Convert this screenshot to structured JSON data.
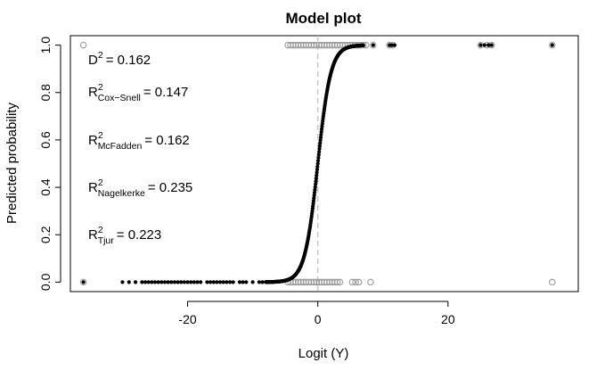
{
  "chart_data": {
    "type": "scatter",
    "title": "Model plot",
    "xlabel": "Logit (Y)",
    "ylabel": "Predicted probability",
    "xlim": [
      -38,
      40
    ],
    "ylim": [
      -0.04,
      1.04
    ],
    "x_ticks": [
      -20,
      0,
      20
    ],
    "x_tick_labels": [
      "-20",
      "0",
      "20"
    ],
    "y_ticks": [
      0,
      0.2,
      0.4,
      0.6,
      0.8,
      1.0
    ],
    "y_tick_labels": [
      "0.0",
      "0.2",
      "0.4",
      "0.6",
      "0.8",
      "1.0"
    ],
    "reference_line_x": 0,
    "series": [
      {
        "role": "fitted",
        "color": "#000000",
        "marker": "filled-circle",
        "curve": "logistic",
        "x_range": [
          -36,
          36
        ],
        "x_dense_range": [
          -8,
          7
        ]
      },
      {
        "role": "observed",
        "color": "#9a9a9a",
        "marker": "open-circle",
        "points": [
          {
            "x": -36,
            "y": 0
          },
          {
            "x": -36,
            "y": 1
          },
          {
            "x": -4.6,
            "y": 0
          },
          {
            "x": -4.2,
            "y": 0
          },
          {
            "x": -3.8,
            "y": 0
          },
          {
            "x": -3.4,
            "y": 0
          },
          {
            "x": -3.0,
            "y": 0
          },
          {
            "x": -2.6,
            "y": 0
          },
          {
            "x": -2.2,
            "y": 0
          },
          {
            "x": -1.8,
            "y": 0
          },
          {
            "x": -1.4,
            "y": 0
          },
          {
            "x": -1.0,
            "y": 0
          },
          {
            "x": -0.6,
            "y": 0
          },
          {
            "x": -0.2,
            "y": 0
          },
          {
            "x": 0.2,
            "y": 0
          },
          {
            "x": 0.6,
            "y": 0
          },
          {
            "x": 1.0,
            "y": 0
          },
          {
            "x": 1.4,
            "y": 0
          },
          {
            "x": 1.8,
            "y": 0
          },
          {
            "x": 2.2,
            "y": 0
          },
          {
            "x": 2.6,
            "y": 0
          },
          {
            "x": 3.0,
            "y": 0
          },
          {
            "x": 3.4,
            "y": 0
          },
          {
            "x": 5.3,
            "y": 0
          },
          {
            "x": 5.8,
            "y": 0
          },
          {
            "x": 6.3,
            "y": 0
          },
          {
            "x": 8.1,
            "y": 0
          },
          {
            "x": 36,
            "y": 0
          },
          {
            "x": -4.6,
            "y": 1
          },
          {
            "x": -4.2,
            "y": 1
          },
          {
            "x": -3.8,
            "y": 1
          },
          {
            "x": -3.4,
            "y": 1
          },
          {
            "x": -3.0,
            "y": 1
          },
          {
            "x": -2.6,
            "y": 1
          },
          {
            "x": -2.2,
            "y": 1
          },
          {
            "x": -1.8,
            "y": 1
          },
          {
            "x": -1.4,
            "y": 1
          },
          {
            "x": -1.0,
            "y": 1
          },
          {
            "x": -0.6,
            "y": 1
          },
          {
            "x": -0.2,
            "y": 1
          },
          {
            "x": 0.2,
            "y": 1
          },
          {
            "x": 0.6,
            "y": 1
          },
          {
            "x": 1.0,
            "y": 1
          },
          {
            "x": 1.4,
            "y": 1
          },
          {
            "x": 1.8,
            "y": 1
          },
          {
            "x": 2.2,
            "y": 1
          },
          {
            "x": 2.6,
            "y": 1
          },
          {
            "x": 3.0,
            "y": 1
          },
          {
            "x": 3.4,
            "y": 1
          },
          {
            "x": 3.8,
            "y": 1
          },
          {
            "x": 4.2,
            "y": 1
          },
          {
            "x": 4.6,
            "y": 1
          },
          {
            "x": 5.0,
            "y": 1
          },
          {
            "x": 5.4,
            "y": 1
          },
          {
            "x": 5.8,
            "y": 1
          },
          {
            "x": 6.2,
            "y": 1
          },
          {
            "x": 6.6,
            "y": 1
          },
          {
            "x": 7.0,
            "y": 1
          },
          {
            "x": 7.4,
            "y": 1
          },
          {
            "x": 8.5,
            "y": 1
          },
          {
            "x": 11.0,
            "y": 1
          },
          {
            "x": 11.5,
            "y": 1
          },
          {
            "x": 25.0,
            "y": 1
          },
          {
            "x": 26.0,
            "y": 1
          },
          {
            "x": 26.7,
            "y": 1
          },
          {
            "x": 36,
            "y": 1
          }
        ]
      }
    ],
    "fitted_extra_points": [
      {
        "x": -36,
        "y": 0
      },
      {
        "x": -30,
        "y": 0
      },
      {
        "x": -29,
        "y": 0
      },
      {
        "x": -28,
        "y": 0
      },
      {
        "x": -27,
        "y": 0
      },
      {
        "x": -26.5,
        "y": 0
      },
      {
        "x": -26,
        "y": 0
      },
      {
        "x": -25.5,
        "y": 0
      },
      {
        "x": -25,
        "y": 0
      },
      {
        "x": -24.5,
        "y": 0
      },
      {
        "x": -24,
        "y": 0
      },
      {
        "x": -23.5,
        "y": 0
      },
      {
        "x": -23,
        "y": 0
      },
      {
        "x": -22.5,
        "y": 0
      },
      {
        "x": -22,
        "y": 0
      },
      {
        "x": -21.5,
        "y": 0
      },
      {
        "x": -21,
        "y": 0
      },
      {
        "x": -20.5,
        "y": 0
      },
      {
        "x": -20,
        "y": 0
      },
      {
        "x": -19.5,
        "y": 0
      },
      {
        "x": -19,
        "y": 0
      },
      {
        "x": -18.5,
        "y": 0
      },
      {
        "x": -18,
        "y": 0
      },
      {
        "x": -17,
        "y": 0
      },
      {
        "x": -16.5,
        "y": 0
      },
      {
        "x": -16,
        "y": 0
      },
      {
        "x": -15.5,
        "y": 0
      },
      {
        "x": -15,
        "y": 0
      },
      {
        "x": -14.5,
        "y": 0
      },
      {
        "x": -14,
        "y": 0
      },
      {
        "x": -13.5,
        "y": 0
      },
      {
        "x": -13,
        "y": 0
      },
      {
        "x": -12,
        "y": 0
      },
      {
        "x": -11.5,
        "y": 0
      },
      {
        "x": -11,
        "y": 0
      },
      {
        "x": -10,
        "y": 0
      },
      {
        "x": -9,
        "y": 0
      },
      {
        "x": -8.5,
        "y": 0
      },
      {
        "x": 8.5,
        "y": 1
      },
      {
        "x": 11.0,
        "y": 1
      },
      {
        "x": 11.4,
        "y": 1
      },
      {
        "x": 11.8,
        "y": 1
      },
      {
        "x": 25.0,
        "y": 1
      },
      {
        "x": 25.6,
        "y": 1
      },
      {
        "x": 26.2,
        "y": 1
      },
      {
        "x": 26.7,
        "y": 1
      },
      {
        "x": 36,
        "y": 1
      }
    ],
    "annotations": [
      {
        "label": "D",
        "superscript": "2",
        "subscript": "",
        "value": "= 0.162"
      },
      {
        "label": "R",
        "superscript": "2",
        "subscript": "Cox−Snell",
        "value": "= 0.147"
      },
      {
        "label": "R",
        "superscript": "2",
        "subscript": "McFadden",
        "value": "= 0.162"
      },
      {
        "label": "R",
        "superscript": "2",
        "subscript": "Nagelkerke",
        "value": "= 0.235"
      },
      {
        "label": "R",
        "superscript": "2",
        "subscript": "Tjur",
        "value": "= 0.223"
      }
    ],
    "grid": false,
    "legend": "none"
  }
}
